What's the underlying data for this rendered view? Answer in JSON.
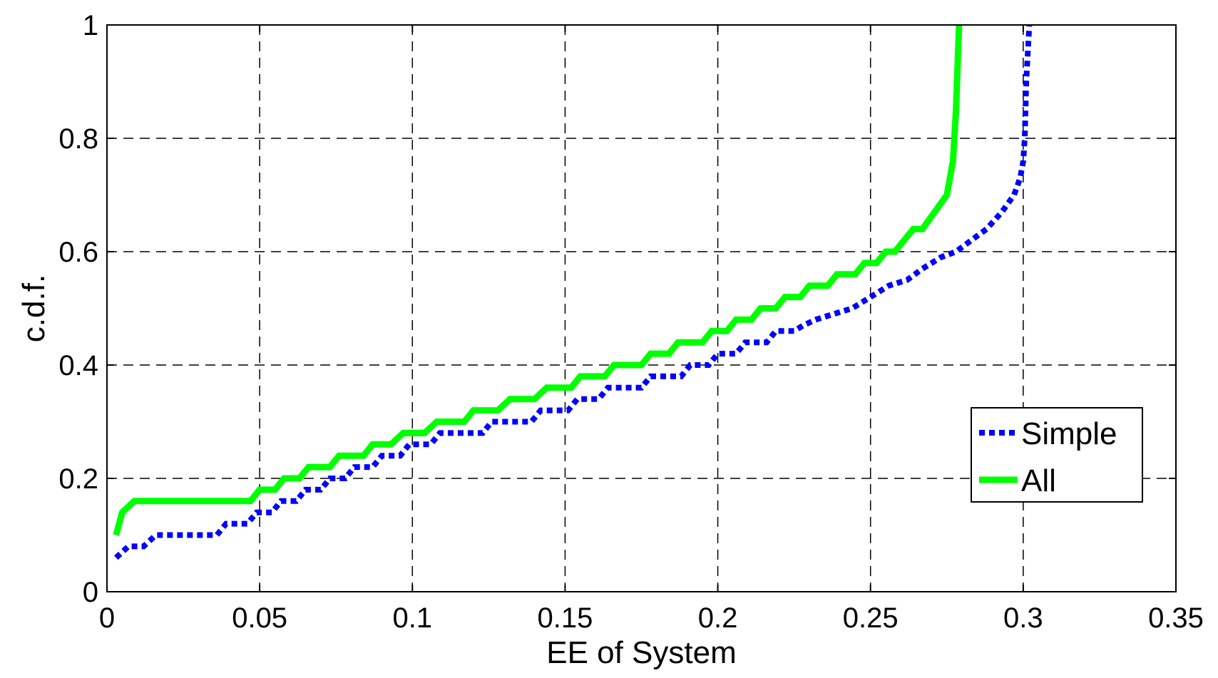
{
  "chart_data": {
    "type": "line",
    "xlabel": "EE of System",
    "ylabel": "c.d.f.",
    "xlim": [
      0,
      0.35
    ],
    "ylim": [
      0,
      1
    ],
    "xticks": [
      0,
      0.05,
      0.1,
      0.15,
      0.2,
      0.25,
      0.3,
      0.35
    ],
    "xtick_labels": [
      "0",
      "0.05",
      "0.1",
      "0.15",
      "0.2",
      "0.25",
      "0.3",
      "0.35"
    ],
    "yticks": [
      0,
      0.2,
      0.4,
      0.6,
      0.8,
      1
    ],
    "ytick_labels": [
      "0",
      "0.2",
      "0.4",
      "0.6",
      "0.8",
      "1"
    ],
    "grid": true,
    "legend_position": "bottom-right",
    "series": [
      {
        "name": "Simple",
        "color": "#0000ff",
        "style": "dotted",
        "points": [
          [
            0.003,
            0.06
          ],
          [
            0.007,
            0.08
          ],
          [
            0.012,
            0.08
          ],
          [
            0.016,
            0.1
          ],
          [
            0.036,
            0.1
          ],
          [
            0.039,
            0.12
          ],
          [
            0.046,
            0.12
          ],
          [
            0.049,
            0.14
          ],
          [
            0.054,
            0.14
          ],
          [
            0.057,
            0.16
          ],
          [
            0.062,
            0.16
          ],
          [
            0.065,
            0.18
          ],
          [
            0.07,
            0.18
          ],
          [
            0.073,
            0.2
          ],
          [
            0.078,
            0.2
          ],
          [
            0.081,
            0.22
          ],
          [
            0.087,
            0.22
          ],
          [
            0.09,
            0.24
          ],
          [
            0.096,
            0.24
          ],
          [
            0.099,
            0.26
          ],
          [
            0.106,
            0.26
          ],
          [
            0.109,
            0.28
          ],
          [
            0.123,
            0.28
          ],
          [
            0.126,
            0.3
          ],
          [
            0.139,
            0.3
          ],
          [
            0.142,
            0.32
          ],
          [
            0.151,
            0.32
          ],
          [
            0.154,
            0.34
          ],
          [
            0.161,
            0.34
          ],
          [
            0.164,
            0.36
          ],
          [
            0.175,
            0.36
          ],
          [
            0.178,
            0.38
          ],
          [
            0.188,
            0.38
          ],
          [
            0.191,
            0.4
          ],
          [
            0.197,
            0.4
          ],
          [
            0.2,
            0.42
          ],
          [
            0.206,
            0.42
          ],
          [
            0.209,
            0.44
          ],
          [
            0.216,
            0.44
          ],
          [
            0.219,
            0.46
          ],
          [
            0.225,
            0.46
          ],
          [
            0.228,
            0.47
          ],
          [
            0.232,
            0.48
          ],
          [
            0.238,
            0.49
          ],
          [
            0.244,
            0.5
          ],
          [
            0.25,
            0.52
          ],
          [
            0.256,
            0.54
          ],
          [
            0.262,
            0.55
          ],
          [
            0.267,
            0.57
          ],
          [
            0.273,
            0.59
          ],
          [
            0.278,
            0.6
          ],
          [
            0.283,
            0.62
          ],
          [
            0.288,
            0.64
          ],
          [
            0.293,
            0.67
          ],
          [
            0.297,
            0.7
          ],
          [
            0.299,
            0.73
          ],
          [
            0.3,
            0.76
          ],
          [
            0.3005,
            0.8
          ],
          [
            0.301,
            0.9
          ],
          [
            0.302,
            1.0
          ]
        ]
      },
      {
        "name": "All",
        "color": "#00ff00",
        "style": "solid",
        "points": [
          [
            0.003,
            0.1
          ],
          [
            0.005,
            0.14
          ],
          [
            0.009,
            0.16
          ],
          [
            0.047,
            0.16
          ],
          [
            0.05,
            0.18
          ],
          [
            0.055,
            0.18
          ],
          [
            0.058,
            0.2
          ],
          [
            0.063,
            0.2
          ],
          [
            0.066,
            0.22
          ],
          [
            0.073,
            0.22
          ],
          [
            0.076,
            0.24
          ],
          [
            0.084,
            0.24
          ],
          [
            0.087,
            0.26
          ],
          [
            0.093,
            0.26
          ],
          [
            0.097,
            0.28
          ],
          [
            0.104,
            0.28
          ],
          [
            0.108,
            0.3
          ],
          [
            0.117,
            0.3
          ],
          [
            0.12,
            0.32
          ],
          [
            0.128,
            0.32
          ],
          [
            0.132,
            0.34
          ],
          [
            0.14,
            0.34
          ],
          [
            0.144,
            0.36
          ],
          [
            0.152,
            0.36
          ],
          [
            0.155,
            0.38
          ],
          [
            0.163,
            0.38
          ],
          [
            0.166,
            0.4
          ],
          [
            0.175,
            0.4
          ],
          [
            0.178,
            0.42
          ],
          [
            0.184,
            0.42
          ],
          [
            0.187,
            0.44
          ],
          [
            0.195,
            0.44
          ],
          [
            0.198,
            0.46
          ],
          [
            0.203,
            0.46
          ],
          [
            0.206,
            0.48
          ],
          [
            0.211,
            0.48
          ],
          [
            0.214,
            0.5
          ],
          [
            0.219,
            0.5
          ],
          [
            0.222,
            0.52
          ],
          [
            0.227,
            0.52
          ],
          [
            0.23,
            0.54
          ],
          [
            0.236,
            0.54
          ],
          [
            0.239,
            0.56
          ],
          [
            0.245,
            0.56
          ],
          [
            0.248,
            0.58
          ],
          [
            0.252,
            0.58
          ],
          [
            0.255,
            0.6
          ],
          [
            0.258,
            0.6
          ],
          [
            0.261,
            0.62
          ],
          [
            0.264,
            0.64
          ],
          [
            0.267,
            0.64
          ],
          [
            0.271,
            0.67
          ],
          [
            0.275,
            0.7
          ],
          [
            0.277,
            0.76
          ],
          [
            0.278,
            0.85
          ],
          [
            0.279,
            1.0
          ]
        ]
      }
    ]
  }
}
